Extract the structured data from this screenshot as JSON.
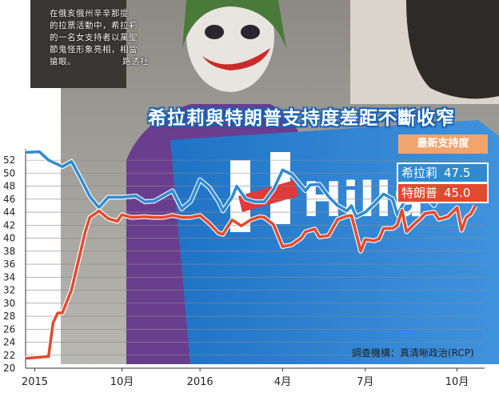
{
  "caption": {
    "lines": [
      "在俄亥俄州辛辛那提",
      "的拉票活動中，希拉莉",
      "的一名女支持者以萬聖",
      "節鬼怪形象亮相，相當",
      "搶眼。"
    ],
    "credit": "路透社"
  },
  "headline": "希拉莉與特朗普支持度差距不斷收窄",
  "legend": {
    "title": "最新支持度",
    "clinton_label": "希拉莉",
    "clinton_value": "47.5",
    "trump_label": "特朗普",
    "trump_value": "45.0"
  },
  "source": "調查機構：真清晰政治(RCP)",
  "colors": {
    "clinton": "#2e8bd0",
    "trump": "#e24a2d",
    "grid": "#8a8a8a"
  },
  "chart_data": {
    "type": "line",
    "yticks": [
      20,
      22,
      24,
      26,
      28,
      30,
      32,
      34,
      36,
      38,
      40,
      42,
      44,
      46,
      48,
      50,
      52
    ],
    "ylim": [
      20,
      53
    ],
    "xlim": [
      0,
      100
    ],
    "xticks": [
      {
        "x": 2,
        "label": "2015"
      },
      {
        "x": 21,
        "label": "10月"
      },
      {
        "x": 38,
        "label": "2016"
      },
      {
        "x": 56,
        "label": "4月"
      },
      {
        "x": 74,
        "label": "7月"
      },
      {
        "x": 94,
        "label": "10月"
      }
    ],
    "grid": true,
    "series": [
      {
        "name": "希拉莉",
        "color": "#2e8bd0",
        "points": [
          [
            0,
            53.2
          ],
          [
            3,
            53.3
          ],
          [
            5,
            52
          ],
          [
            8,
            51
          ],
          [
            10,
            51.8
          ],
          [
            12,
            49.2
          ],
          [
            14,
            46.4
          ],
          [
            16,
            44.7
          ],
          [
            18,
            46.3
          ],
          [
            21,
            46.3
          ],
          [
            24,
            46.5
          ],
          [
            26,
            45.6
          ],
          [
            28,
            45.7
          ],
          [
            30,
            46.5
          ],
          [
            32,
            47.3
          ],
          [
            34,
            44.5
          ],
          [
            36,
            45.7
          ],
          [
            38,
            49
          ],
          [
            40,
            47.8
          ],
          [
            42,
            45.7
          ],
          [
            43,
            44.2
          ],
          [
            45,
            46.3
          ],
          [
            46,
            48
          ],
          [
            48,
            46
          ],
          [
            50,
            45.6
          ],
          [
            52,
            45.6
          ],
          [
            54,
            47.5
          ],
          [
            56,
            50.5
          ],
          [
            58,
            49.8
          ],
          [
            60,
            48.1
          ],
          [
            61,
            47.3
          ],
          [
            62,
            48.2
          ],
          [
            64,
            48.3
          ],
          [
            66,
            46.4
          ],
          [
            68,
            45
          ],
          [
            70,
            44.2
          ],
          [
            71,
            45
          ],
          [
            72,
            43.3
          ],
          [
            74,
            44
          ],
          [
            76,
            45.3
          ],
          [
            78,
            46.8
          ],
          [
            80,
            46
          ],
          [
            81,
            43.6
          ],
          [
            83,
            46.3
          ],
          [
            84,
            46.8
          ],
          [
            85,
            48.9
          ],
          [
            86,
            48.5
          ],
          [
            87,
            46.3
          ],
          [
            88,
            45.7
          ],
          [
            89,
            45
          ],
          [
            90,
            46.5
          ],
          [
            91,
            48
          ],
          [
            92,
            48.5
          ],
          [
            94,
            48.3
          ],
          [
            96,
            49.2
          ],
          [
            97,
            47.5
          ],
          [
            98,
            47.5
          ]
        ]
      },
      {
        "name": "特朗普",
        "color": "#e24a2d",
        "points": [
          [
            0,
            21.5
          ],
          [
            5,
            21.8
          ],
          [
            6,
            27
          ],
          [
            7,
            28.5
          ],
          [
            8,
            28.5
          ],
          [
            10,
            32
          ],
          [
            12,
            38
          ],
          [
            13,
            41
          ],
          [
            14,
            43.2
          ],
          [
            16,
            44.2
          ],
          [
            18,
            43
          ],
          [
            20,
            42.6
          ],
          [
            21,
            43.6
          ],
          [
            23,
            43.2
          ],
          [
            26,
            43.3
          ],
          [
            28,
            43.2
          ],
          [
            30,
            43.2
          ],
          [
            32,
            43.5
          ],
          [
            34,
            43.2
          ],
          [
            36,
            43.2
          ],
          [
            38,
            43.5
          ],
          [
            40,
            42.3
          ],
          [
            42,
            40.8
          ],
          [
            43,
            40.6
          ],
          [
            45,
            42.8
          ],
          [
            47,
            41.9
          ],
          [
            49,
            42.8
          ],
          [
            51,
            43.3
          ],
          [
            52,
            43.2
          ],
          [
            54,
            42.1
          ],
          [
            56,
            38.7
          ],
          [
            58,
            39
          ],
          [
            60,
            40
          ],
          [
            61,
            41
          ],
          [
            63,
            41.4
          ],
          [
            64,
            40.2
          ],
          [
            66,
            40.4
          ],
          [
            68,
            42.9
          ],
          [
            70,
            43.4
          ],
          [
            71,
            43.5
          ],
          [
            72,
            40.8
          ],
          [
            73,
            38
          ],
          [
            74,
            39.8
          ],
          [
            76,
            39.6
          ],
          [
            77,
            39.9
          ],
          [
            78,
            41.5
          ],
          [
            80,
            41.5
          ],
          [
            81,
            42
          ],
          [
            82,
            44.3
          ],
          [
            83,
            41
          ],
          [
            85,
            42.4
          ],
          [
            86,
            43
          ],
          [
            87,
            43.8
          ],
          [
            89,
            44
          ],
          [
            90,
            42.9
          ],
          [
            92,
            43.3
          ],
          [
            94,
            44.7
          ],
          [
            95,
            41.2
          ],
          [
            96,
            43.2
          ],
          [
            97,
            43.7
          ],
          [
            98,
            45
          ]
        ]
      }
    ]
  }
}
